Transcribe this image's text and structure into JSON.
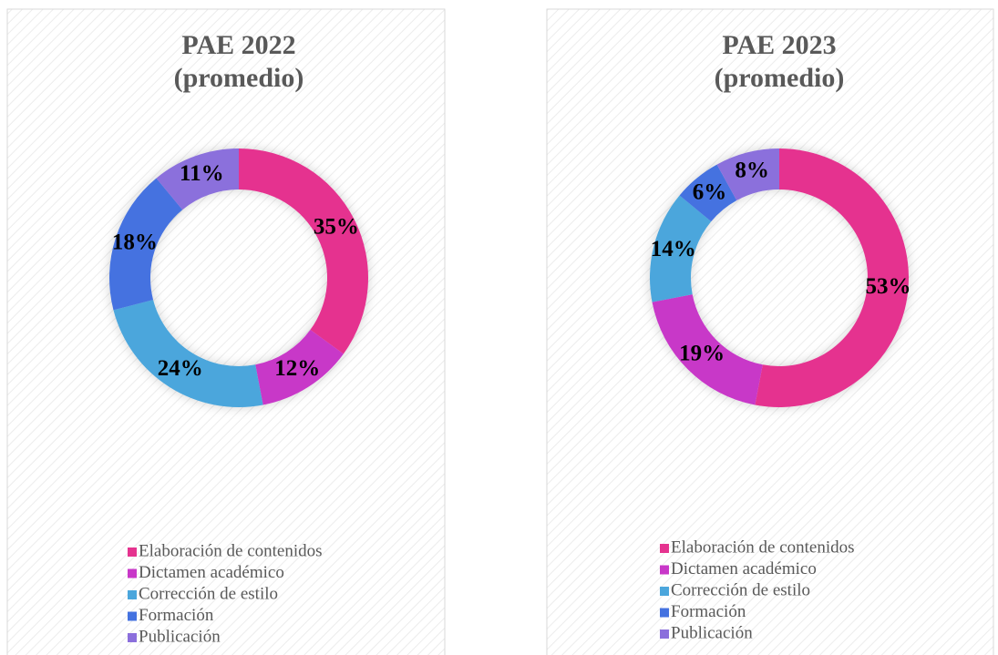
{
  "chart_data": [
    {
      "type": "donut",
      "title": "PAE 2022 (promedio)",
      "categories": [
        "Elaboración de contenidos",
        "Dictamen académico",
        "Corrección de estilo",
        "Formación",
        "Publicación"
      ],
      "values": [
        35,
        12,
        24,
        18,
        11
      ],
      "value_labels": [
        "35%",
        "12%",
        "24%",
        "18%",
        "11%"
      ],
      "colors": [
        "#e5338f",
        "#c837c8",
        "#4ba6dc",
        "#4472e0",
        "#8b6fdc"
      ],
      "legend": "bottom"
    },
    {
      "type": "donut",
      "title": "PAE 2023 (promedio)",
      "categories": [
        "Elaboración de contenidos",
        "Dictamen académico",
        "Corrección de estilo",
        "Formación",
        "Publicación"
      ],
      "values": [
        53,
        19,
        14,
        6,
        8
      ],
      "value_labels": [
        "53%",
        "19%",
        "14%",
        "6%",
        "8%"
      ],
      "colors": [
        "#e5338f",
        "#c837c8",
        "#4ba6dc",
        "#4472e0",
        "#8b6fdc"
      ],
      "legend": "bottom"
    }
  ]
}
